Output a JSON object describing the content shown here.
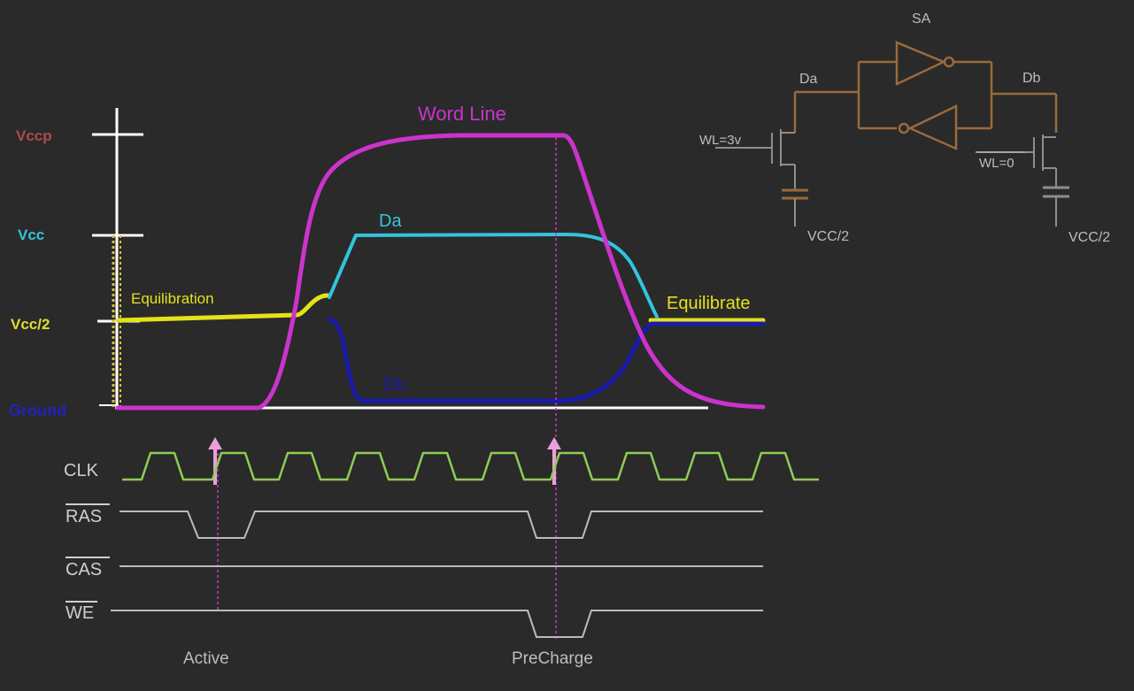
{
  "voltage_levels": {
    "vccp": "Vccp",
    "vcc": "Vcc",
    "vcc_half": "Vcc/2",
    "ground": "Ground"
  },
  "waveforms": {
    "word_line": "Word Line",
    "da": "Da",
    "db": "Db",
    "equilibration": "Equilibration",
    "equilibrate": "Equilibrate"
  },
  "control_signals": {
    "clk": "CLK",
    "ras": "RAS",
    "cas": "CAS",
    "we": "WE"
  },
  "events": {
    "active": "Active",
    "precharge": "PreCharge"
  },
  "circuit": {
    "sa": "SA",
    "da": "Da",
    "db": "Db",
    "wl_left": "WL=3v",
    "wl_right": "WL=0",
    "vcc_half_left": "VCC/2",
    "vcc_half_right": "VCC/2"
  },
  "colors": {
    "background": "#2a2a2a",
    "word_line": "#cc33cc",
    "da": "#33c4dd",
    "db": "#1a1aaa",
    "equilibration": "#e6e21a",
    "clk": "#8fcc55",
    "control": "#bbbbbb",
    "circuit": "#9a6a3a",
    "axis": "#ffffff",
    "vccp_label": "#b04a4a",
    "vcc_label": "#33c4dd",
    "vcc_half_label": "#dddd33",
    "ground_label": "#2222bb",
    "event_marker": "#cc33cc"
  }
}
